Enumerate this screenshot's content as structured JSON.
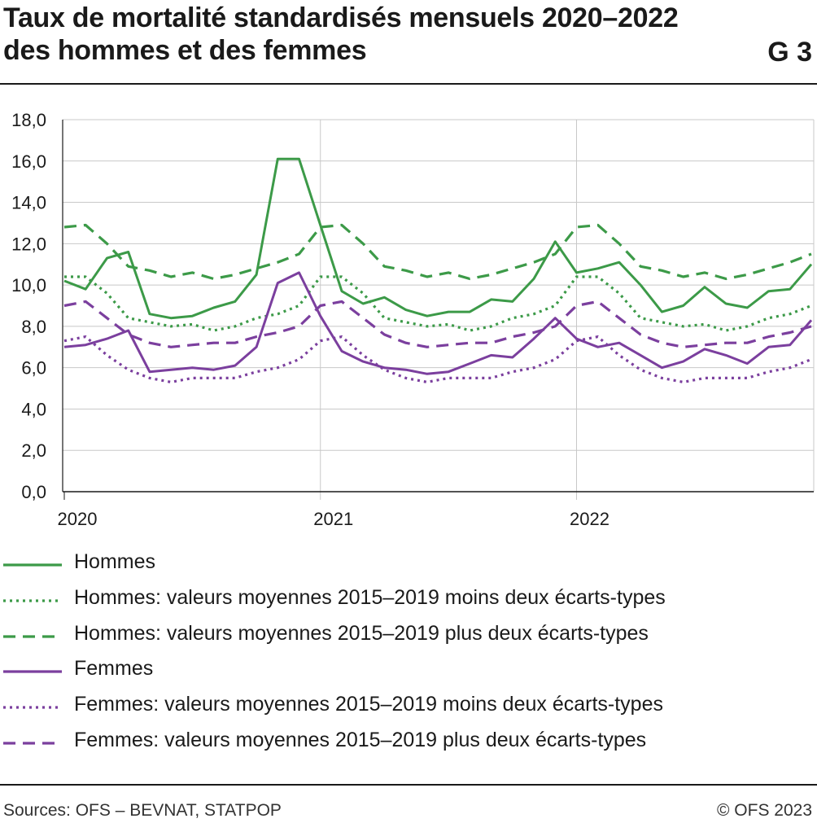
{
  "header": {
    "title_line1": "Taux de mortalité standardisés mensuels 2020–2022",
    "title_line2": "des hommes et des femmes",
    "code": "G 3"
  },
  "footer": {
    "source": "Sources: OFS – BEVNAT, STATPOP",
    "copyright": "© OFS 2023"
  },
  "colors": {
    "hommes": "#3c9a48",
    "femmes": "#7b3f9e"
  },
  "chart_data": {
    "type": "line",
    "title": "Taux de mortalité standardisés mensuels 2020–2022 des hommes et des femmes",
    "xlabel": "",
    "ylabel": "",
    "ylim": [
      0,
      18
    ],
    "yticks": [
      "0,0",
      "2,0",
      "4,0",
      "6,0",
      "8,0",
      "10,0",
      "12,0",
      "14,0",
      "16,0",
      "18,0"
    ],
    "xtick_labels": [
      "2020",
      "2021",
      "2022"
    ],
    "x": [
      "2020-01",
      "2020-02",
      "2020-03",
      "2020-04",
      "2020-05",
      "2020-06",
      "2020-07",
      "2020-08",
      "2020-09",
      "2020-10",
      "2020-11",
      "2020-12",
      "2021-01",
      "2021-02",
      "2021-03",
      "2021-04",
      "2021-05",
      "2021-06",
      "2021-07",
      "2021-08",
      "2021-09",
      "2021-10",
      "2021-11",
      "2021-12",
      "2022-01",
      "2022-02",
      "2022-03",
      "2022-04",
      "2022-05",
      "2022-06",
      "2022-07",
      "2022-08",
      "2022-09",
      "2022-10",
      "2022-11",
      "2022-12"
    ],
    "grid": true,
    "legend_position": "bottom",
    "series": [
      {
        "name": "Hommes",
        "style": "solid",
        "color": "#3c9a48",
        "values": [
          10.2,
          9.8,
          11.3,
          11.6,
          8.6,
          8.4,
          8.5,
          8.9,
          9.2,
          10.5,
          16.1,
          16.1,
          12.9,
          9.7,
          9.1,
          9.4,
          8.8,
          8.5,
          8.7,
          8.7,
          9.3,
          9.2,
          10.3,
          12.1,
          10.6,
          10.8,
          11.1,
          10.0,
          8.7,
          9.0,
          9.9,
          9.1,
          8.9,
          9.7,
          9.8,
          11.0
        ]
      },
      {
        "name": "Hommes: valeurs moyennes 2015–2019 moins deux écarts-types",
        "style": "dotted",
        "color": "#3c9a48",
        "values": [
          10.4,
          10.4,
          9.6,
          8.4,
          8.2,
          8.0,
          8.1,
          7.8,
          8.0,
          8.4,
          8.6,
          9.0,
          10.4,
          10.4,
          9.6,
          8.4,
          8.2,
          8.0,
          8.1,
          7.8,
          8.0,
          8.4,
          8.6,
          9.0,
          10.4,
          10.4,
          9.6,
          8.4,
          8.2,
          8.0,
          8.1,
          7.8,
          8.0,
          8.4,
          8.6,
          9.0
        ]
      },
      {
        "name": "Hommes: valeurs moyennes 2015–2019 plus deux écarts-types",
        "style": "dashed",
        "color": "#3c9a48",
        "values": [
          12.8,
          12.9,
          12.0,
          10.9,
          10.7,
          10.4,
          10.6,
          10.3,
          10.5,
          10.8,
          11.1,
          11.5,
          12.8,
          12.9,
          12.0,
          10.9,
          10.7,
          10.4,
          10.6,
          10.3,
          10.5,
          10.8,
          11.1,
          11.5,
          12.8,
          12.9,
          12.0,
          10.9,
          10.7,
          10.4,
          10.6,
          10.3,
          10.5,
          10.8,
          11.1,
          11.5
        ]
      },
      {
        "name": "Femmes",
        "style": "solid",
        "color": "#7b3f9e",
        "values": [
          7.0,
          7.1,
          7.4,
          7.8,
          5.8,
          5.9,
          6.0,
          5.9,
          6.1,
          7.0,
          10.1,
          10.6,
          8.5,
          6.8,
          6.3,
          6.0,
          5.9,
          5.7,
          5.8,
          6.2,
          6.6,
          6.5,
          7.4,
          8.4,
          7.4,
          7.0,
          7.2,
          6.6,
          6.0,
          6.3,
          6.9,
          6.6,
          6.2,
          7.0,
          7.1,
          8.3
        ]
      },
      {
        "name": "Femmes: valeurs moyennes 2015–2019 moins deux écarts-types",
        "style": "dotted",
        "color": "#7b3f9e",
        "values": [
          7.3,
          7.5,
          6.6,
          5.9,
          5.5,
          5.3,
          5.5,
          5.5,
          5.5,
          5.8,
          6.0,
          6.4,
          7.3,
          7.5,
          6.6,
          5.9,
          5.5,
          5.3,
          5.5,
          5.5,
          5.5,
          5.8,
          6.0,
          6.4,
          7.3,
          7.5,
          6.6,
          5.9,
          5.5,
          5.3,
          5.5,
          5.5,
          5.5,
          5.8,
          6.0,
          6.4
        ]
      },
      {
        "name": "Femmes: valeurs moyennes 2015–2019 plus deux écarts-types",
        "style": "dashed",
        "color": "#7b3f9e",
        "values": [
          9.0,
          9.2,
          8.4,
          7.6,
          7.2,
          7.0,
          7.1,
          7.2,
          7.2,
          7.5,
          7.7,
          8.0,
          9.0,
          9.2,
          8.4,
          7.6,
          7.2,
          7.0,
          7.1,
          7.2,
          7.2,
          7.5,
          7.7,
          8.0,
          9.0,
          9.2,
          8.4,
          7.6,
          7.2,
          7.0,
          7.1,
          7.2,
          7.2,
          7.5,
          7.7,
          8.0
        ]
      }
    ]
  }
}
